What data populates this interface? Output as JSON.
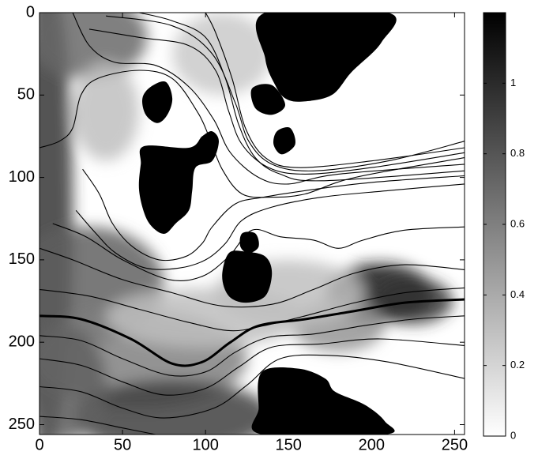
{
  "chart_data": {
    "type": "heatmap",
    "title": "",
    "xlabel": "",
    "ylabel": "",
    "xlim": [
      0,
      256
    ],
    "ylim": [
      256,
      0
    ],
    "x_ticks": [
      0,
      50,
      100,
      150,
      200,
      250
    ],
    "y_ticks": [
      0,
      50,
      100,
      150,
      200,
      250
    ],
    "y_axis_inverted": true,
    "colormap": "gray-reversed",
    "color_low": "#ffffff",
    "color_high": "#000000",
    "colorbar": {
      "range": [
        0,
        1.2
      ],
      "ticks": [
        0,
        0.2,
        0.4,
        0.6,
        0.8,
        1
      ],
      "placement": "right"
    },
    "grid": false,
    "obstacles": [
      {
        "name": "top-right-block",
        "points": [
          [
            136,
            0
          ],
          [
            210,
            0
          ],
          [
            206,
            18
          ],
          [
            188,
            36
          ],
          [
            176,
            50
          ],
          [
            158,
            54
          ],
          [
            148,
            52
          ],
          [
            142,
            44
          ],
          [
            136,
            28
          ]
        ]
      },
      {
        "name": "top-right-tail",
        "points": [
          [
            128,
            46
          ],
          [
            140,
            44
          ],
          [
            148,
            56
          ],
          [
            140,
            62
          ],
          [
            130,
            58
          ]
        ]
      },
      {
        "name": "small-right-blob",
        "points": [
          [
            143,
            72
          ],
          [
            151,
            70
          ],
          [
            154,
            80
          ],
          [
            146,
            86
          ],
          [
            141,
            80
          ]
        ]
      },
      {
        "name": "upper-left-blob",
        "points": [
          [
            67,
            45
          ],
          [
            76,
            42
          ],
          [
            80,
            52
          ],
          [
            77,
            62
          ],
          [
            71,
            67
          ],
          [
            64,
            62
          ],
          [
            62,
            52
          ]
        ]
      },
      {
        "name": "left-block",
        "points": [
          [
            63,
            81
          ],
          [
            90,
            82
          ],
          [
            98,
            75
          ],
          [
            104,
            72
          ],
          [
            108,
            78
          ],
          [
            104,
            90
          ],
          [
            94,
            94
          ],
          [
            92,
            108
          ],
          [
            90,
            120
          ],
          [
            82,
            128
          ],
          [
            76,
            134
          ],
          [
            70,
            132
          ],
          [
            64,
            124
          ],
          [
            60,
            108
          ],
          [
            61,
            92
          ]
        ]
      },
      {
        "name": "center-blob",
        "points": [
          [
            114,
            146
          ],
          [
            124,
            145
          ],
          [
            136,
            148
          ],
          [
            140,
            158
          ],
          [
            136,
            172
          ],
          [
            124,
            176
          ],
          [
            114,
            172
          ],
          [
            110,
            160
          ]
        ]
      },
      {
        "name": "center-blob-tail",
        "points": [
          [
            122,
            134
          ],
          [
            130,
            134
          ],
          [
            132,
            142
          ],
          [
            126,
            146
          ],
          [
            121,
            142
          ]
        ]
      },
      {
        "name": "bottom-block",
        "points": [
          [
            134,
            218
          ],
          [
            156,
            216
          ],
          [
            172,
            222
          ],
          [
            178,
            230
          ],
          [
            196,
            238
          ],
          [
            208,
            248
          ],
          [
            208,
            256
          ],
          [
            134,
            256
          ],
          [
            132,
            240
          ]
        ]
      }
    ],
    "density_blobs": [
      {
        "cx": 4,
        "cy": 120,
        "rx": 16,
        "ry": 150,
        "value": 0.95
      },
      {
        "cx": 30,
        "cy": 165,
        "rx": 45,
        "ry": 35,
        "value": 0.75
      },
      {
        "cx": 60,
        "cy": 210,
        "rx": 65,
        "ry": 30,
        "value": 0.6
      },
      {
        "cx": 80,
        "cy": 245,
        "rx": 60,
        "ry": 22,
        "value": 0.9
      },
      {
        "cx": 15,
        "cy": 225,
        "rx": 25,
        "ry": 35,
        "value": 0.75
      },
      {
        "cx": 205,
        "cy": 170,
        "rx": 32,
        "ry": 18,
        "value": 1.1
      },
      {
        "cx": 225,
        "cy": 175,
        "rx": 24,
        "ry": 14,
        "value": 0.95
      },
      {
        "cx": 180,
        "cy": 190,
        "rx": 28,
        "ry": 16,
        "value": 0.5
      },
      {
        "cx": 150,
        "cy": 170,
        "rx": 45,
        "ry": 20,
        "value": 0.3
      },
      {
        "cx": 100,
        "cy": 185,
        "rx": 60,
        "ry": 18,
        "value": 0.3
      },
      {
        "cx": 30,
        "cy": 15,
        "rx": 35,
        "ry": 25,
        "value": 0.7
      },
      {
        "cx": 40,
        "cy": 60,
        "rx": 20,
        "ry": 30,
        "value": 0.3
      },
      {
        "cx": 110,
        "cy": 25,
        "rx": 30,
        "ry": 25,
        "value": 0.25
      },
      {
        "cx": 240,
        "cy": 240,
        "rx": 30,
        "ry": 25,
        "value": 0.0
      }
    ],
    "contours": [
      {
        "bold": false,
        "points": [
          [
            0,
            82
          ],
          [
            12,
            78
          ],
          [
            20,
            70
          ],
          [
            25,
            50
          ],
          [
            35,
            40
          ],
          [
            60,
            35
          ],
          [
            80,
            40
          ],
          [
            95,
            60
          ],
          [
            102,
            75
          ],
          [
            110,
            95
          ],
          [
            122,
            110
          ],
          [
            140,
            112
          ],
          [
            160,
            110
          ],
          [
            190,
            100
          ],
          [
            256,
            88
          ]
        ]
      },
      {
        "bold": false,
        "points": [
          [
            20,
            0
          ],
          [
            30,
            20
          ],
          [
            45,
            30
          ],
          [
            70,
            32
          ],
          [
            90,
            45
          ],
          [
            105,
            65
          ],
          [
            115,
            85
          ],
          [
            132,
            100
          ],
          [
            150,
            104
          ],
          [
            180,
            98
          ],
          [
            256,
            92
          ]
        ]
      },
      {
        "bold": false,
        "points": [
          [
            60,
            0
          ],
          [
            80,
            5
          ],
          [
            100,
            15
          ],
          [
            112,
            40
          ],
          [
            120,
            68
          ],
          [
            130,
            88
          ],
          [
            145,
            98
          ],
          [
            170,
            102
          ],
          [
            256,
            96
          ]
        ]
      },
      {
        "bold": false,
        "points": [
          [
            30,
            10
          ],
          [
            60,
            15
          ],
          [
            90,
            20
          ],
          [
            106,
            35
          ],
          [
            114,
            60
          ],
          [
            122,
            80
          ],
          [
            138,
            94
          ],
          [
            160,
            98
          ],
          [
            200,
            94
          ],
          [
            256,
            85
          ]
        ]
      },
      {
        "bold": false,
        "points": [
          [
            40,
            2
          ],
          [
            80,
            8
          ],
          [
            104,
            25
          ],
          [
            118,
            55
          ],
          [
            126,
            78
          ],
          [
            140,
            92
          ],
          [
            165,
            96
          ],
          [
            210,
            90
          ],
          [
            256,
            78
          ]
        ]
      },
      {
        "bold": false,
        "points": [
          [
            100,
            0
          ],
          [
            106,
            12
          ],
          [
            116,
            40
          ],
          [
            124,
            70
          ],
          [
            136,
            88
          ],
          [
            155,
            94
          ],
          [
            200,
            90
          ],
          [
            256,
            82
          ]
        ]
      },
      {
        "bold": false,
        "points": [
          [
            256,
            99
          ],
          [
            200,
            103
          ],
          [
            160,
            108
          ],
          [
            135,
            112
          ],
          [
            118,
            116
          ],
          [
            104,
            130
          ],
          [
            98,
            140
          ],
          [
            88,
            148
          ],
          [
            72,
            150
          ],
          [
            56,
            142
          ],
          [
            44,
            128
          ],
          [
            36,
            110
          ],
          [
            26,
            95
          ]
        ]
      },
      {
        "bold": false,
        "points": [
          [
            256,
            104
          ],
          [
            210,
            108
          ],
          [
            170,
            112
          ],
          [
            140,
            118
          ],
          [
            122,
            126
          ],
          [
            112,
            140
          ],
          [
            100,
            150
          ],
          [
            84,
            155
          ],
          [
            64,
            155
          ],
          [
            46,
            146
          ],
          [
            34,
            134
          ],
          [
            22,
            120
          ]
        ]
      },
      {
        "bold": false,
        "points": [
          [
            256,
            130
          ],
          [
            220,
            132
          ],
          [
            195,
            138
          ],
          [
            180,
            143
          ],
          [
            165,
            138
          ],
          [
            145,
            136
          ],
          [
            128,
            132
          ],
          [
            114,
            148
          ],
          [
            98,
            160
          ],
          [
            78,
            162
          ],
          [
            50,
            150
          ],
          [
            28,
            136
          ],
          [
            8,
            128
          ]
        ]
      },
      {
        "bold": false,
        "points": [
          [
            0,
            143
          ],
          [
            20,
            150
          ],
          [
            50,
            162
          ],
          [
            80,
            170
          ],
          [
            110,
            178
          ],
          [
            140,
            177
          ],
          [
            165,
            168
          ],
          [
            190,
            158
          ],
          [
            220,
            153
          ],
          [
            256,
            156
          ]
        ]
      },
      {
        "bold": false,
        "points": [
          [
            0,
            168
          ],
          [
            30,
            172
          ],
          [
            60,
            180
          ],
          [
            90,
            188
          ],
          [
            115,
            193
          ],
          [
            135,
            190
          ],
          [
            160,
            184
          ],
          [
            190,
            176
          ],
          [
            220,
            170
          ],
          [
            256,
            167
          ]
        ]
      },
      {
        "bold": true,
        "points": [
          [
            0,
            184
          ],
          [
            25,
            186
          ],
          [
            55,
            198
          ],
          [
            80,
            213
          ],
          [
            98,
            212
          ],
          [
            115,
            200
          ],
          [
            132,
            190
          ],
          [
            160,
            186
          ],
          [
            190,
            181
          ],
          [
            220,
            176
          ],
          [
            256,
            174
          ]
        ]
      },
      {
        "bold": false,
        "points": [
          [
            0,
            196
          ],
          [
            25,
            199
          ],
          [
            50,
            210
          ],
          [
            78,
            220
          ],
          [
            100,
            218
          ],
          [
            118,
            206
          ],
          [
            138,
            197
          ],
          [
            165,
            195
          ],
          [
            195,
            190
          ],
          [
            225,
            186
          ],
          [
            256,
            184
          ]
        ]
      },
      {
        "bold": false,
        "points": [
          [
            0,
            210
          ],
          [
            25,
            214
          ],
          [
            50,
            224
          ],
          [
            75,
            232
          ],
          [
            100,
            228
          ],
          [
            120,
            215
          ],
          [
            140,
            203
          ],
          [
            170,
            201
          ],
          [
            205,
            198
          ],
          [
            256,
            202
          ]
        ]
      },
      {
        "bold": false,
        "points": [
          [
            0,
            227
          ],
          [
            25,
            230
          ],
          [
            50,
            240
          ],
          [
            75,
            246
          ],
          [
            105,
            240
          ],
          [
            125,
            226
          ],
          [
            145,
            210
          ],
          [
            175,
            208
          ],
          [
            210,
            212
          ],
          [
            256,
            222
          ]
        ]
      },
      {
        "bold": false,
        "points": [
          [
            0,
            245
          ],
          [
            25,
            247
          ],
          [
            50,
            252
          ],
          [
            70,
            256
          ]
        ]
      }
    ]
  }
}
